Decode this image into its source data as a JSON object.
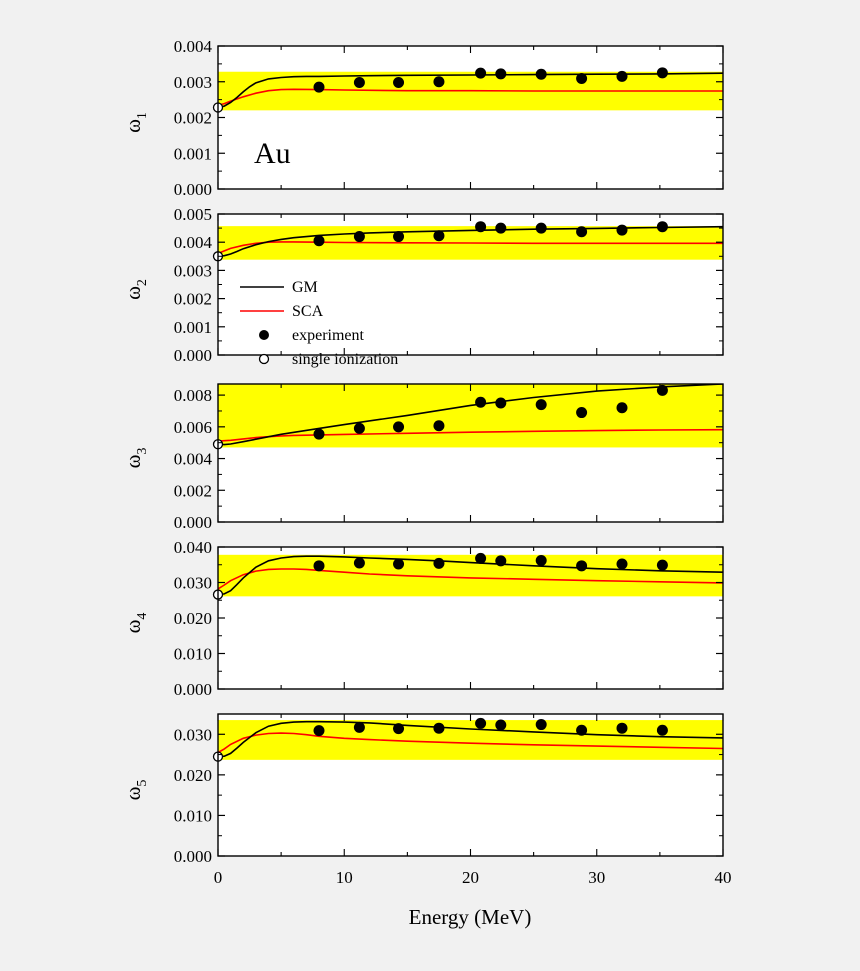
{
  "colors": {
    "background": "#f1f1f1",
    "plot_area": "#ffffff",
    "band": "#ffff00",
    "gm": "#000000",
    "sca": "#ff0000",
    "axis": "#000000"
  },
  "chart_data": {
    "type": "line",
    "element_label": "Au",
    "xlabel": "Energy (MeV)",
    "xlim": [
      0,
      40
    ],
    "xticks": [
      0,
      10,
      20,
      30,
      40
    ],
    "legend": {
      "placement": "panel-2-lower-left",
      "entries": [
        {
          "key": "gm",
          "label": "GM",
          "marker": "line",
          "color": "#000000"
        },
        {
          "key": "sca",
          "label": "SCA",
          "marker": "line",
          "color": "#ff0000"
        },
        {
          "key": "exp",
          "label": "experiment",
          "marker": "filled-circle"
        },
        {
          "key": "single",
          "label": "single ionization",
          "marker": "open-circle"
        }
      ]
    },
    "experiment_x": [
      8.0,
      11.2,
      14.3,
      17.5,
      20.8,
      22.4,
      25.6,
      28.8,
      32.0,
      35.2
    ],
    "panels": [
      {
        "ylabel": "ω",
        "ylabel_sub": "1",
        "ylim": [
          0,
          0.004
        ],
        "yticks": [
          "0.000",
          "0.001",
          "0.002",
          "0.003",
          "0.004"
        ],
        "band": [
          0.0022,
          0.00328
        ],
        "single_ionization": 0.00228,
        "gm": {
          "x": [
            0,
            0.5,
            1,
            1.5,
            2,
            2.5,
            3,
            4,
            5,
            6,
            7,
            8,
            10,
            12,
            15,
            20,
            25,
            30,
            35,
            40
          ],
          "y": [
            0.00228,
            0.00232,
            0.00242,
            0.00256,
            0.00272,
            0.00286,
            0.00297,
            0.00308,
            0.00312,
            0.00314,
            0.00315,
            0.00315,
            0.00316,
            0.00317,
            0.00318,
            0.00319,
            0.0032,
            0.00321,
            0.00322,
            0.00324
          ]
        },
        "sca": {
          "x": [
            0,
            0.5,
            1,
            2,
            3,
            4,
            5,
            6,
            8,
            10,
            15,
            20,
            25,
            30,
            35,
            40
          ],
          "y": [
            0.00234,
            0.00239,
            0.00246,
            0.00258,
            0.00268,
            0.00275,
            0.00278,
            0.00279,
            0.00278,
            0.00277,
            0.00275,
            0.00275,
            0.00274,
            0.00274,
            0.00274,
            0.00274
          ]
        },
        "experiment_y": [
          0.00285,
          0.00298,
          0.00298,
          0.003,
          0.00324,
          0.00322,
          0.00321,
          0.00309,
          0.00315,
          0.00325
        ]
      },
      {
        "ylabel": "ω",
        "ylabel_sub": "2",
        "ylim": [
          0,
          0.005
        ],
        "yticks": [
          "0.000",
          "0.001",
          "0.002",
          "0.003",
          "0.004",
          "0.005"
        ],
        "band": [
          0.00338,
          0.00457
        ],
        "single_ionization": 0.0035,
        "gm": {
          "x": [
            0,
            0.5,
            1,
            1.5,
            2,
            3,
            4,
            5,
            6,
            8,
            10,
            12,
            15,
            20,
            25,
            30,
            35,
            40
          ],
          "y": [
            0.0035,
            0.00352,
            0.00358,
            0.00367,
            0.00377,
            0.00391,
            0.00402,
            0.0041,
            0.00416,
            0.00424,
            0.00429,
            0.00433,
            0.00437,
            0.00442,
            0.00446,
            0.00449,
            0.00452,
            0.00455
          ]
        },
        "sca": {
          "x": [
            0,
            0.5,
            1,
            2,
            3,
            4,
            5,
            6,
            8,
            10,
            15,
            20,
            25,
            30,
            35,
            40
          ],
          "y": [
            0.0036,
            0.00369,
            0.00378,
            0.00389,
            0.00396,
            0.004,
            0.00401,
            0.00401,
            0.004,
            0.00399,
            0.00398,
            0.00397,
            0.00396,
            0.00396,
            0.00396,
            0.00396
          ]
        },
        "experiment_y": [
          0.00405,
          0.0042,
          0.0042,
          0.00423,
          0.00455,
          0.0045,
          0.0045,
          0.00437,
          0.00443,
          0.00455
        ]
      },
      {
        "ylabel": "ω",
        "ylabel_sub": "3",
        "ylim": [
          0,
          0.0087
        ],
        "yticks": [
          "0.000",
          "0.002",
          "0.004",
          "0.006",
          "0.008"
        ],
        "band": [
          0.0047,
          0.0087
        ],
        "single_ionization": 0.0049,
        "gm": {
          "x": [
            0,
            0.5,
            1,
            2,
            3,
            5,
            8,
            10,
            15,
            20,
            25,
            30,
            35,
            40
          ],
          "y": [
            0.0049,
            0.00488,
            0.00492,
            0.00506,
            0.00522,
            0.00553,
            0.0059,
            0.00614,
            0.00672,
            0.00735,
            0.00785,
            0.00825,
            0.00852,
            0.0087
          ]
        },
        "sca": {
          "x": [
            0,
            1,
            2,
            3,
            4,
            5,
            6,
            8,
            10,
            15,
            20,
            25,
            30,
            35,
            40
          ],
          "y": [
            0.0051,
            0.00515,
            0.00524,
            0.00532,
            0.00538,
            0.00543,
            0.00546,
            0.00549,
            0.00552,
            0.00559,
            0.00566,
            0.00572,
            0.00576,
            0.0058,
            0.00582
          ]
        },
        "experiment_y": [
          0.00554,
          0.0059,
          0.006,
          0.00607,
          0.00755,
          0.0075,
          0.0074,
          0.0069,
          0.0072,
          0.0083
        ]
      },
      {
        "ylabel": "ω",
        "ylabel_sub": "4",
        "ylim": [
          0,
          0.04
        ],
        "yticks": [
          "0.000",
          "0.010",
          "0.020",
          "0.030",
          "0.040"
        ],
        "band": [
          0.0261,
          0.0378
        ],
        "single_ionization": 0.0266,
        "gm": {
          "x": [
            0,
            0.5,
            1,
            1.5,
            2,
            3,
            4,
            5,
            6,
            7,
            8,
            10,
            12,
            15,
            18,
            20,
            25,
            30,
            35,
            40
          ],
          "y": [
            0.0266,
            0.0268,
            0.0277,
            0.0294,
            0.0313,
            0.0343,
            0.0361,
            0.0369,
            0.0373,
            0.0374,
            0.0374,
            0.0372,
            0.0369,
            0.0365,
            0.036,
            0.0356,
            0.0347,
            0.0339,
            0.0333,
            0.0329
          ]
        },
        "sca": {
          "x": [
            0,
            0.5,
            1,
            2,
            3,
            4,
            5,
            6,
            7,
            8,
            10,
            12,
            15,
            20,
            25,
            30,
            35,
            40
          ],
          "y": [
            0.0282,
            0.0293,
            0.0305,
            0.0322,
            0.0332,
            0.0337,
            0.0338,
            0.0338,
            0.0337,
            0.0334,
            0.0329,
            0.0324,
            0.0319,
            0.0313,
            0.0309,
            0.0305,
            0.0302,
            0.0299
          ]
        },
        "experiment_y": [
          0.0347,
          0.0355,
          0.0352,
          0.0354,
          0.0368,
          0.0361,
          0.0362,
          0.0347,
          0.0352,
          0.0349
        ]
      },
      {
        "ylabel": "ω",
        "ylabel_sub": "5",
        "ylim": [
          0,
          0.035
        ],
        "yticks": [
          "0.000",
          "0.010",
          "0.020",
          "0.030"
        ],
        "band": [
          0.0237,
          0.0335
        ],
        "single_ionization": 0.0245,
        "gm": {
          "x": [
            0,
            0.5,
            1,
            1.5,
            2,
            3,
            4,
            5,
            6,
            7,
            8,
            10,
            12,
            15,
            20,
            25,
            30,
            35,
            40
          ],
          "y": [
            0.0245,
            0.0246,
            0.0253,
            0.0266,
            0.028,
            0.0304,
            0.032,
            0.0327,
            0.033,
            0.0331,
            0.0331,
            0.033,
            0.0328,
            0.0322,
            0.0313,
            0.0306,
            0.0299,
            0.0294,
            0.0291
          ]
        },
        "sca": {
          "x": [
            0,
            0.5,
            1,
            2,
            3,
            4,
            5,
            6,
            7,
            8,
            10,
            12,
            15,
            20,
            25,
            30,
            35,
            40
          ],
          "y": [
            0.0255,
            0.0264,
            0.0275,
            0.029,
            0.0298,
            0.0302,
            0.0303,
            0.0302,
            0.0299,
            0.0295,
            0.029,
            0.0287,
            0.0283,
            0.0278,
            0.0274,
            0.0271,
            0.0268,
            0.0265
          ]
        },
        "experiment_y": [
          0.0309,
          0.0317,
          0.0314,
          0.0315,
          0.0327,
          0.0323,
          0.0324,
          0.031,
          0.0315,
          0.031
        ]
      }
    ]
  }
}
